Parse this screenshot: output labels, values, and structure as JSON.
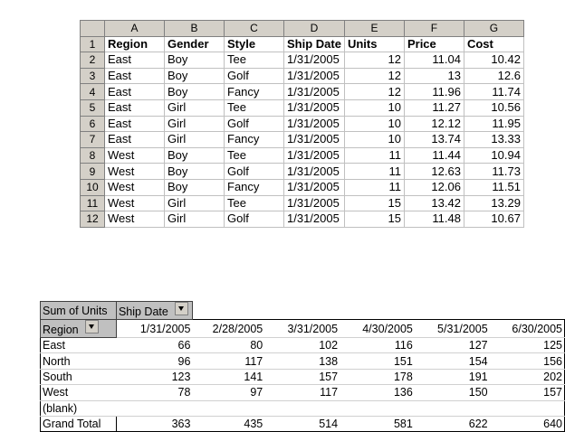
{
  "sheet": {
    "column_headers": [
      "A",
      "B",
      "C",
      "D",
      "E",
      "F",
      "G"
    ],
    "row_numbers": [
      "1",
      "2",
      "3",
      "4",
      "5",
      "6",
      "7",
      "8",
      "9",
      "10",
      "11",
      "12"
    ],
    "header_row": [
      "Region",
      "Gender",
      "Style",
      "Ship Date",
      "Units",
      "Price",
      "Cost"
    ],
    "rows": [
      [
        "East",
        "Boy",
        "Tee",
        "1/31/2005",
        "12",
        "11.04",
        "10.42"
      ],
      [
        "East",
        "Boy",
        "Golf",
        "1/31/2005",
        "12",
        "13",
        "12.6"
      ],
      [
        "East",
        "Boy",
        "Fancy",
        "1/31/2005",
        "12",
        "11.96",
        "11.74"
      ],
      [
        "East",
        "Girl",
        "Tee",
        "1/31/2005",
        "10",
        "11.27",
        "10.56"
      ],
      [
        "East",
        "Girl",
        "Golf",
        "1/31/2005",
        "10",
        "12.12",
        "11.95"
      ],
      [
        "East",
        "Girl",
        "Fancy",
        "1/31/2005",
        "10",
        "13.74",
        "13.33"
      ],
      [
        "West",
        "Boy",
        "Tee",
        "1/31/2005",
        "11",
        "11.44",
        "10.94"
      ],
      [
        "West",
        "Boy",
        "Golf",
        "1/31/2005",
        "11",
        "12.63",
        "11.73"
      ],
      [
        "West",
        "Boy",
        "Fancy",
        "1/31/2005",
        "11",
        "12.06",
        "11.51"
      ],
      [
        "West",
        "Girl",
        "Tee",
        "1/31/2005",
        "15",
        "13.42",
        "13.29"
      ],
      [
        "West",
        "Girl",
        "Golf",
        "1/31/2005",
        "15",
        "11.48",
        "10.67"
      ]
    ]
  },
  "pivot": {
    "data_field": "Sum of Units",
    "column_field": "Ship Date",
    "row_field": "Region",
    "dates": [
      "1/31/2005",
      "2/28/2005",
      "3/31/2005",
      "4/30/2005",
      "5/31/2005",
      "6/30/2005"
    ],
    "rows": [
      {
        "label": "East",
        "values": [
          "66",
          "80",
          "102",
          "116",
          "127",
          "125"
        ]
      },
      {
        "label": "North",
        "values": [
          "96",
          "117",
          "138",
          "151",
          "154",
          "156"
        ]
      },
      {
        "label": "South",
        "values": [
          "123",
          "141",
          "157",
          "178",
          "191",
          "202"
        ]
      },
      {
        "label": "West",
        "values": [
          "78",
          "97",
          "117",
          "136",
          "150",
          "157"
        ]
      },
      {
        "label": "(blank)",
        "values": [
          "",
          "",
          "",
          "",
          "",
          ""
        ]
      }
    ],
    "grand_total_label": "Grand Total",
    "grand_total": [
      "363",
      "435",
      "514",
      "581",
      "622",
      "640"
    ]
  },
  "colors": {
    "header_gray": "#d4d0c8",
    "field_button_gray": "#c0c0c0",
    "grid": "#c0c0c0"
  }
}
